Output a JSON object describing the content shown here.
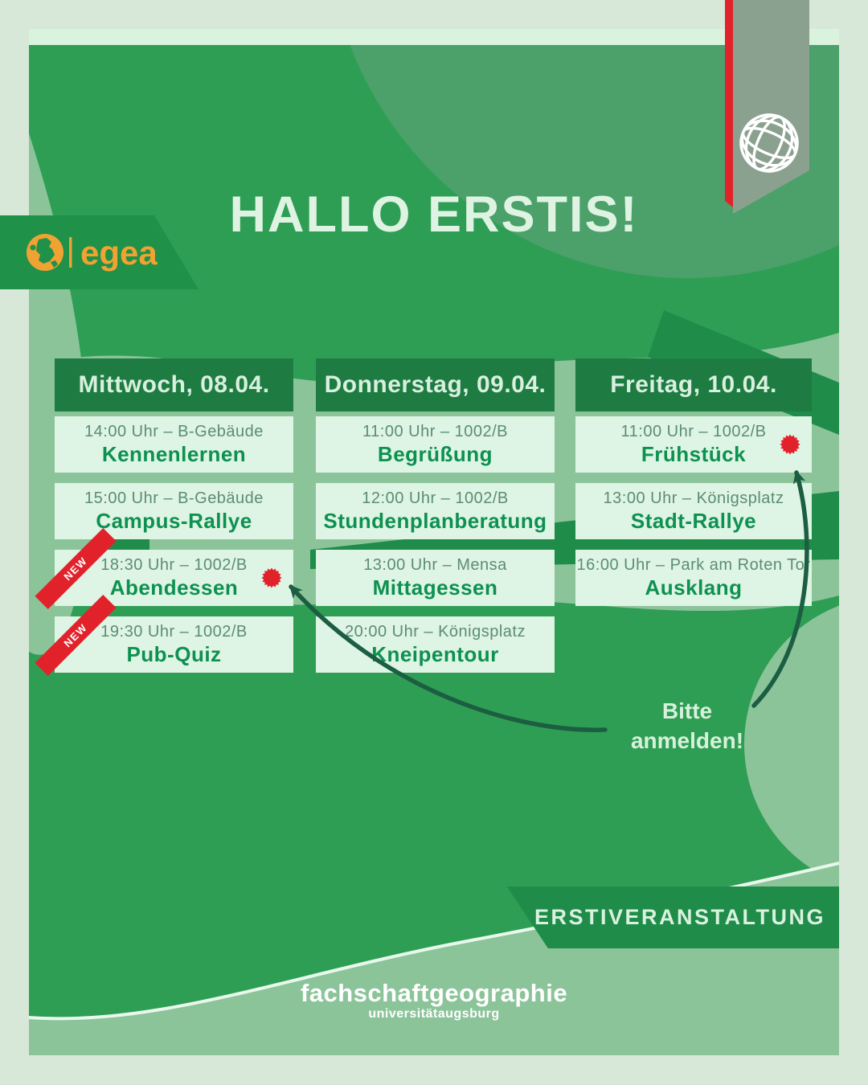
{
  "title": "HALLO ERSTIS!",
  "badge": {
    "egea_label": "egea"
  },
  "note": {
    "line1": "Bitte",
    "line2": "anmelden!"
  },
  "bottom_banner": {
    "label": "ERSTIVERANSTALTUNG"
  },
  "footer": {
    "brand": "fachschaftgeographie",
    "sub": "universitätaugsburg"
  },
  "new_label": "NEW",
  "columns": [
    {
      "day": "Mittwoch, 08.04.",
      "events": [
        {
          "time": "14:00 Uhr – B-Gebäude",
          "name": "Kennenlernen",
          "is_new": false,
          "has_seal": false
        },
        {
          "time": "15:00 Uhr – B-Gebäude",
          "name": "Campus-Rallye",
          "is_new": false,
          "has_seal": false
        },
        {
          "time": "18:30 Uhr – 1002/B",
          "name": "Abendessen",
          "is_new": true,
          "has_seal": true
        },
        {
          "time": "19:30 Uhr – 1002/B",
          "name": "Pub-Quiz",
          "is_new": true,
          "has_seal": false
        }
      ]
    },
    {
      "day": "Donnerstag, 09.04.",
      "events": [
        {
          "time": "11:00 Uhr – 1002/B",
          "name": "Begrüßung",
          "is_new": false,
          "has_seal": false
        },
        {
          "time": "12:00 Uhr – 1002/B",
          "name": "Stundenplanberatung",
          "is_new": false,
          "has_seal": false
        },
        {
          "time": "13:00 Uhr – Mensa",
          "name": "Mittagessen",
          "is_new": false,
          "has_seal": false
        },
        {
          "time": "20:00 Uhr – Königsplatz",
          "name": "Kneipentour",
          "is_new": false,
          "has_seal": false
        }
      ]
    },
    {
      "day": "Freitag, 10.04.",
      "events": [
        {
          "time": "11:00 Uhr – 1002/B",
          "name": "Frühstück",
          "is_new": false,
          "has_seal": true
        },
        {
          "time": "13:00 Uhr – Königsplatz",
          "name": "Stadt-Rallye",
          "is_new": false,
          "has_seal": false
        },
        {
          "time": "16:00 Uhr – Park am Roten Tor",
          "name": "Ausklang",
          "is_new": false,
          "has_seal": false
        }
      ]
    }
  ],
  "colors": {
    "frame_mint": "#d7e8d8",
    "panel_mint": "#d9f3de",
    "card_mint": "#def4e4",
    "main_green": "#2f9e55",
    "sage_light": "#8cc49a",
    "sage_dark": "#4ba169",
    "header_green": "#1e7c42",
    "stripe_green": "#1f8c4a",
    "arrow_green": "#1b5e41",
    "accent_red": "#e2222b",
    "egea_orange": "#f0a232",
    "ribbon_gray": "#8ba18f",
    "time_text": "#5c8d73",
    "event_text": "#0d9150",
    "light_text": "#d9f2de"
  },
  "icons": [
    "europe-map-icon",
    "globe-icon",
    "red-seal-icon",
    "curved-arrow"
  ]
}
